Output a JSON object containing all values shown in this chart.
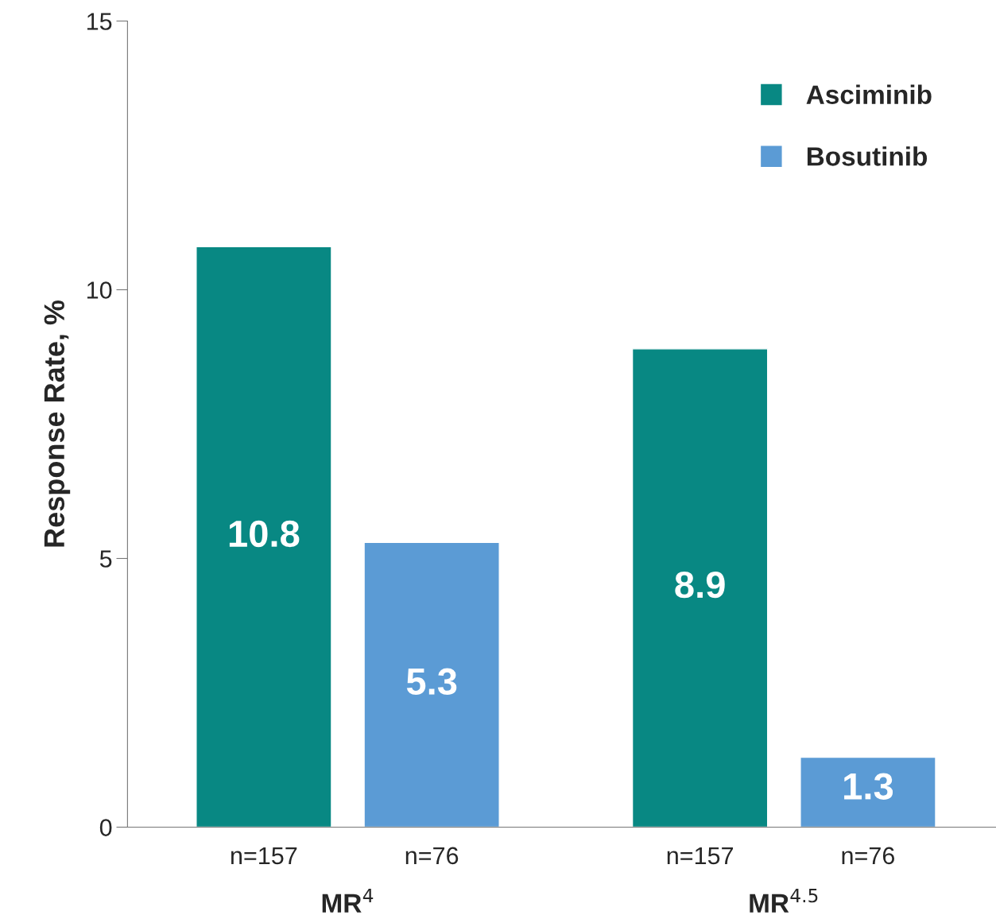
{
  "chart_data": {
    "type": "bar",
    "ylabel": "Response Rate, %",
    "categories": [
      "MR$^{4}$",
      "MR$^{4.5}$"
    ],
    "series": [
      {
        "name": "Asciminib",
        "color": "#088883",
        "values": [
          10.8,
          8.9
        ]
      },
      {
        "name": "Bosutinib",
        "color": "#5b9bd5",
        "values": [
          5.3,
          1.3
        ]
      }
    ],
    "annotations": [
      "n=157",
      "n=157",
      "n=76",
      "n=76"
    ],
    "ylim": [
      0,
      15
    ],
    "yticks": [
      0,
      5,
      10,
      15
    ],
    "grid": false,
    "legend": "top right",
    "data_labels": true
  }
}
